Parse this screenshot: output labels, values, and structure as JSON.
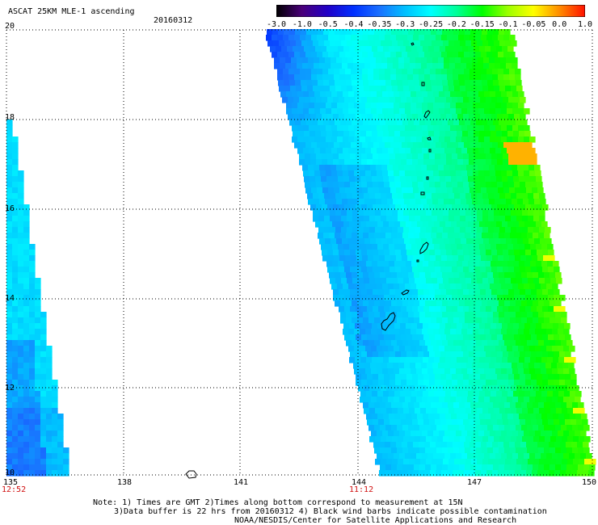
{
  "header": {
    "title": "ASCAT 25KM MLE-1 ascending",
    "date": "20160312"
  },
  "colorbar": {
    "labels": [
      "-3.0",
      "-1.0",
      "-0.5",
      "-0.4",
      "-0.35",
      "-0.3",
      "-0.25",
      "-0.2",
      "-0.15",
      "-0.1",
      "-0.05",
      "0.0",
      "1.0"
    ],
    "colors": [
      "#000000",
      "#4a007a",
      "#2000c8",
      "#0030ff",
      "#1a70ff",
      "#00c0ff",
      "#00ffff",
      "#00ff9a",
      "#00ff00",
      "#9cff00",
      "#ffff00",
      "#ff8c00",
      "#ff1000"
    ]
  },
  "axes": {
    "lon_ticks": [
      "135",
      "138",
      "141",
      "144",
      "147",
      "150"
    ],
    "lat_ticks": [
      "20",
      "18",
      "16",
      "14",
      "12",
      "10"
    ],
    "time_labels": [
      "12:52",
      "11:12"
    ]
  },
  "notes": {
    "line1": "Note: 1) Times are GMT 2)Times along bottom correspond to measurement at 15N",
    "line2": "3)Data buffer is 22 hrs from 20160312 4) Black wind barbs indicate possible contamination",
    "line3": "NOAA/NESDIS/Center for Satellite Applications and Research"
  }
}
